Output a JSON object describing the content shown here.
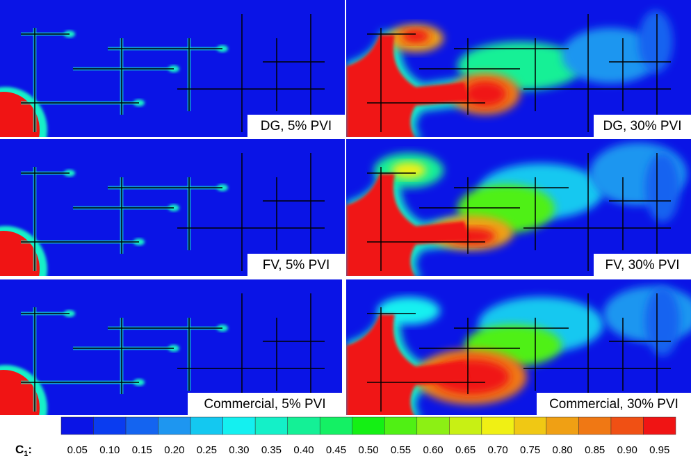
{
  "panels": [
    {
      "label": "DG, 5% PVI"
    },
    {
      "label": "DG, 30% PVI"
    },
    {
      "label": "FV, 5% PVI"
    },
    {
      "label": "FV, 30% PVI"
    },
    {
      "label": "Commercial, 5% PVI"
    },
    {
      "label": "Commercial, 30% PVI"
    }
  ],
  "colorbar": {
    "label": "C",
    "subscript": "1",
    "ticks": [
      "0.05",
      "0.10",
      "0.15",
      "0.20",
      "0.25",
      "0.30",
      "0.35",
      "0.40",
      "0.45",
      "0.50",
      "0.55",
      "0.60",
      "0.65",
      "0.70",
      "0.75",
      "0.80",
      "0.85",
      "0.90",
      "0.95"
    ],
    "colors": [
      "#0a14e6",
      "#0a3cf0",
      "#1464f0",
      "#1e96f0",
      "#14c8f0",
      "#14f0f0",
      "#14f0c8",
      "#14f096",
      "#14f064",
      "#14f014",
      "#50f014",
      "#8cf014",
      "#c8f014",
      "#f0f014",
      "#f0c814",
      "#f0a014",
      "#f07814",
      "#f05014",
      "#f01414"
    ]
  }
}
